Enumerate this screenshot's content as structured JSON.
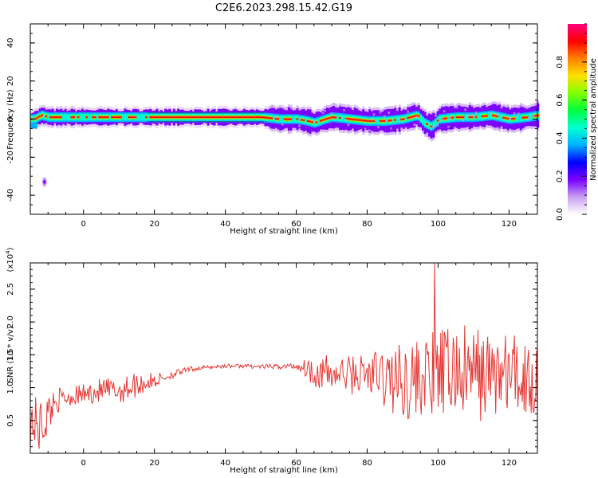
{
  "figure_title": "C2E6.2023.298.15.42.G19",
  "chart_data": [
    {
      "type": "heatmap",
      "xlabel": "Height of straight line (km)",
      "ylabel": "Frequency (Hz)",
      "xlim": [
        -15,
        128
      ],
      "ylim": [
        -50,
        50
      ],
      "xticks": [
        0,
        20,
        40,
        60,
        80,
        100,
        120
      ],
      "yticks": [
        40,
        20,
        0,
        -20,
        -40
      ],
      "ridge": {
        "x": [
          -14,
          -12,
          -10,
          -5,
          0,
          10,
          20,
          30,
          40,
          50,
          55,
          60,
          63,
          65,
          68,
          70,
          75,
          80,
          85,
          90,
          94,
          96,
          98,
          100,
          105,
          110,
          115,
          120,
          125,
          128
        ],
        "frequency": [
          0,
          2,
          1,
          1,
          1,
          1,
          1,
          1,
          1,
          1,
          0,
          0,
          -1,
          -2,
          0,
          1,
          0,
          -1,
          -1,
          0,
          2,
          -2,
          -4,
          0,
          1,
          1,
          2,
          0,
          1,
          2
        ]
      },
      "isolated_blob": {
        "x": -11,
        "frequency": -33
      },
      "colorbar": {
        "label": "Normalized spectral amplitude",
        "ticks": [
          "0.0",
          "0.2",
          "0.4",
          "0.6",
          "0.8"
        ],
        "range": [
          0,
          1
        ],
        "colors": [
          "#ffffff",
          "#c9a0f0",
          "#7a00ff",
          "#0000ff",
          "#00b0ff",
          "#00ffd0",
          "#00ff40",
          "#80ff00",
          "#ffe000",
          "#ff8000",
          "#ff0000",
          "#ff0080"
        ]
      }
    },
    {
      "type": "line",
      "xlabel": "Height of straight line (km)",
      "ylabel": "SNR (10 * v/v)",
      "yscale_note": "(x10^4)",
      "xlim": [
        -15,
        128
      ],
      "ylim": [
        0,
        2.9
      ],
      "xticks": [
        0,
        20,
        40,
        60,
        80,
        100,
        120
      ],
      "yticks": [
        "0.5",
        "1.0",
        "1.5",
        "2.0",
        "2.5"
      ],
      "series_color": "#e53935",
      "envelope": {
        "x": [
          -15,
          -12,
          -8,
          -5,
          0,
          5,
          10,
          15,
          20,
          25,
          30,
          35,
          40,
          45,
          50,
          55,
          60,
          63,
          65,
          70,
          75,
          80,
          85,
          90,
          95,
          100,
          105,
          110,
          115,
          120,
          125,
          128
        ],
        "center": [
          0.5,
          0.4,
          0.8,
          0.85,
          0.9,
          0.95,
          0.95,
          1.05,
          1.1,
          1.2,
          1.28,
          1.31,
          1.33,
          1.33,
          1.32,
          1.32,
          1.33,
          1.3,
          1.25,
          1.2,
          1.2,
          1.2,
          1.15,
          1.1,
          1.15,
          1.2,
          1.25,
          1.2,
          1.2,
          1.2,
          1.15,
          1.1
        ],
        "amplitude": [
          0.4,
          0.45,
          0.2,
          0.15,
          0.15,
          0.2,
          0.2,
          0.2,
          0.12,
          0.06,
          0.04,
          0.03,
          0.03,
          0.03,
          0.03,
          0.04,
          0.06,
          0.15,
          0.25,
          0.3,
          0.3,
          0.35,
          0.5,
          0.6,
          0.6,
          0.7,
          0.7,
          0.75,
          0.65,
          0.65,
          0.65,
          0.6
        ]
      },
      "peak": {
        "x": 99,
        "y": 2.9
      }
    }
  ]
}
